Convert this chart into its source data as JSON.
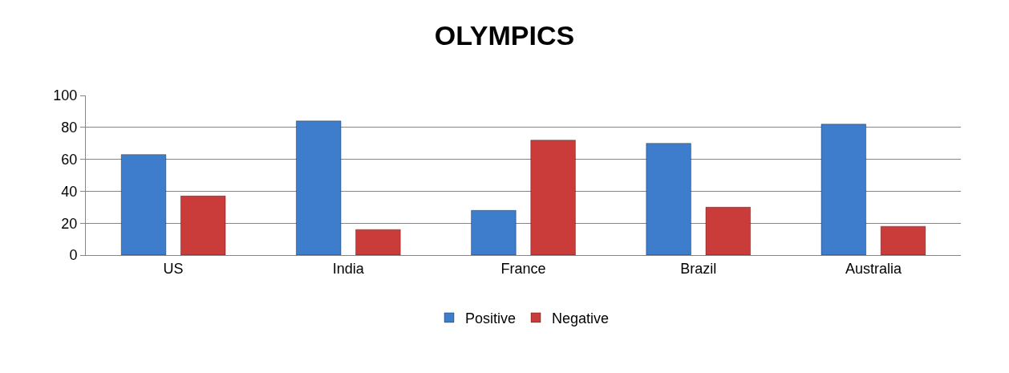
{
  "chart_data": {
    "type": "bar",
    "title": "OLYMPICS",
    "categories": [
      "US",
      "India",
      "France",
      "Brazil",
      "Australia"
    ],
    "series": [
      {
        "name": "Positive",
        "color": "#3d7dcb",
        "values": [
          63,
          84,
          28,
          70,
          82
        ]
      },
      {
        "name": "Negative",
        "color": "#c93c3a",
        "values": [
          37,
          16,
          72,
          30,
          18
        ]
      }
    ],
    "ylim": [
      0,
      100
    ],
    "yticks": [
      0,
      20,
      40,
      60,
      80,
      100
    ],
    "grid": "y",
    "legend": "bottom"
  }
}
